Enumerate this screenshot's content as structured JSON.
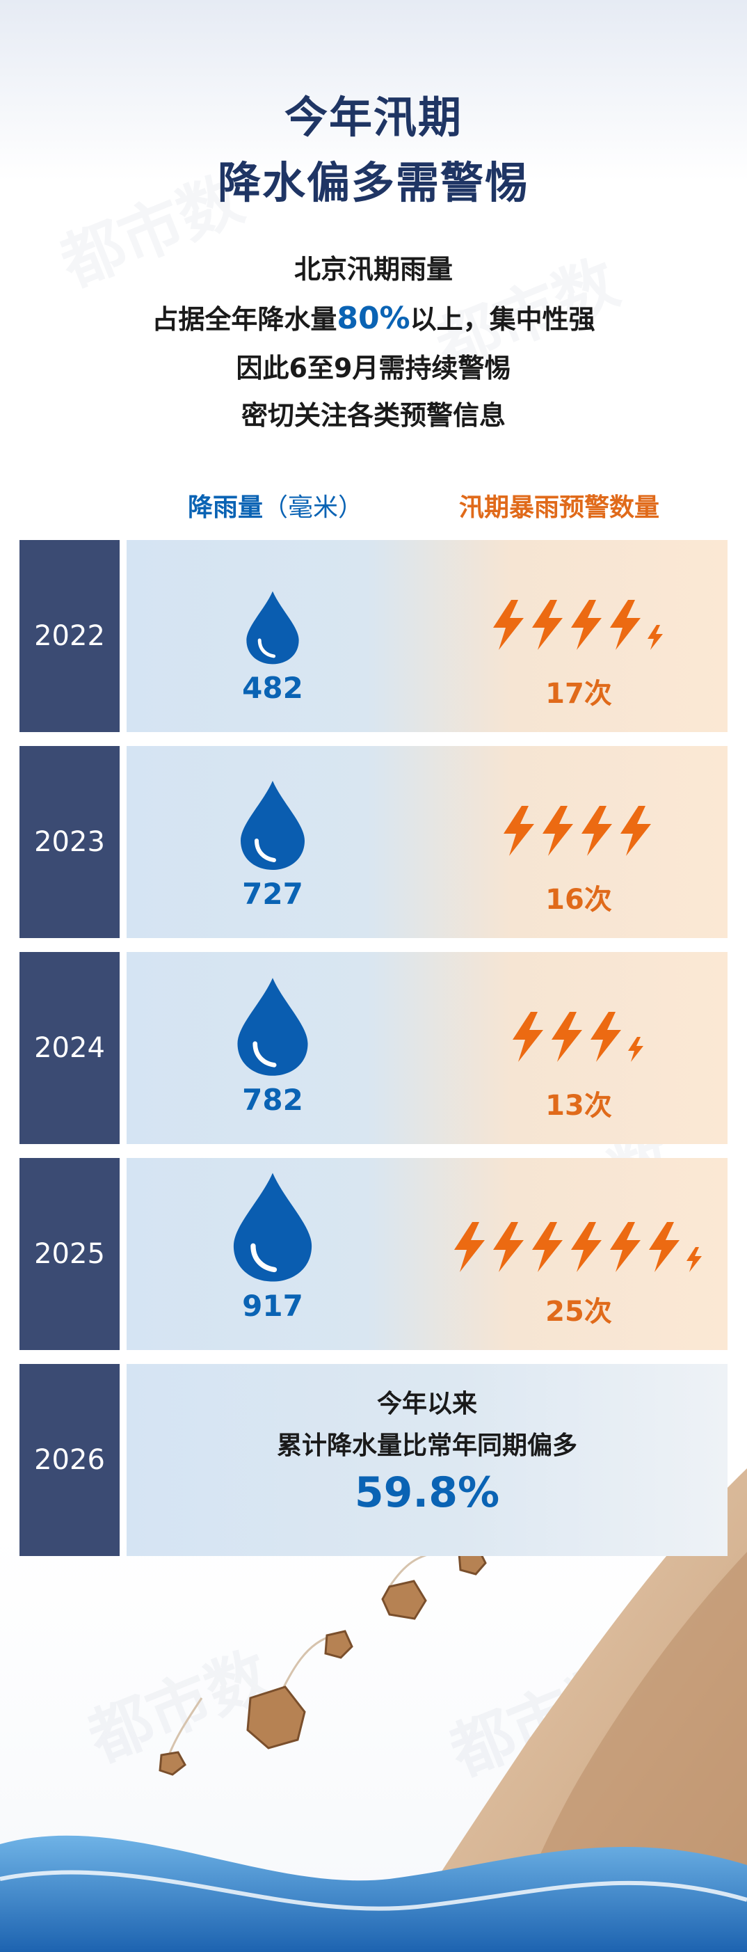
{
  "title": {
    "line1": "今年汛期",
    "line2": "降水偏多需警惕"
  },
  "subtitle": {
    "line1": "北京汛期雨量",
    "line2_pre": "占据全年降水量",
    "line2_hl": "80%",
    "line2_post": "以上，集中性强",
    "line3": "因此6至9月需持续警惕",
    "line4": "密切关注各类预警信息"
  },
  "headers": {
    "rain": "降雨量",
    "rain_unit": "（毫米）",
    "warn": "汛期暴雨预警数量"
  },
  "rows": [
    {
      "year": "2022",
      "rain": "482",
      "warnings": "17次",
      "bolt_full": 4,
      "bolt_small": 1
    },
    {
      "year": "2023",
      "rain": "727",
      "warnings": "16次",
      "bolt_full": 4,
      "bolt_small": 0
    },
    {
      "year": "2024",
      "rain": "782",
      "warnings": "13次",
      "bolt_full": 3,
      "bolt_small": 1
    },
    {
      "year": "2025",
      "rain": "917",
      "warnings": "25次",
      "bolt_full": 6,
      "bolt_small": 1
    }
  ],
  "current": {
    "year": "2026",
    "line1": "今年以来",
    "line2": "累计降水量比常年同期偏多",
    "value": "59.8%"
  },
  "colors": {
    "navy": "#3b4b73",
    "blue": "#0a63b4",
    "orange": "#e06a1a",
    "title": "#1f3564"
  }
}
